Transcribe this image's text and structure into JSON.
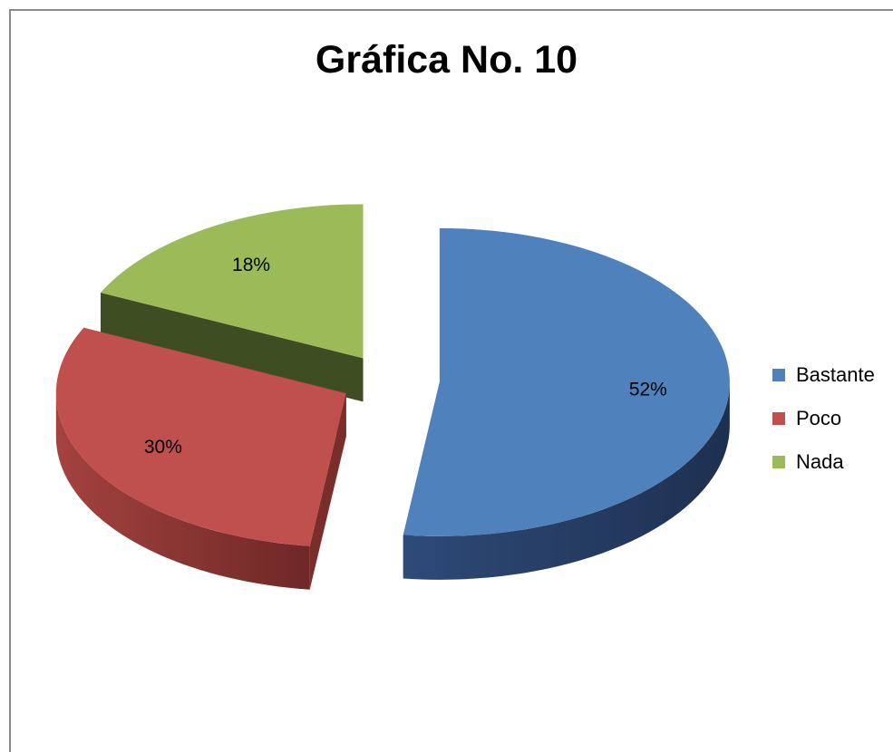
{
  "chart_data": {
    "type": "pie",
    "title": "Gráfica No. 10",
    "categories": [
      "Bastante",
      "Poco",
      "Nada"
    ],
    "values": [
      52,
      30,
      18
    ],
    "data_labels": [
      "52%",
      "30%",
      "18%"
    ],
    "colors": [
      "#4F81BD",
      "#C0504D",
      "#9BBB59"
    ],
    "side_colors": [
      "#24385A",
      "#7A2E2C",
      "#3F4D22"
    ],
    "style": "3d-exploded",
    "legend": {
      "position": "right",
      "entries": [
        "Bastante",
        "Poco",
        "Nada"
      ]
    }
  }
}
